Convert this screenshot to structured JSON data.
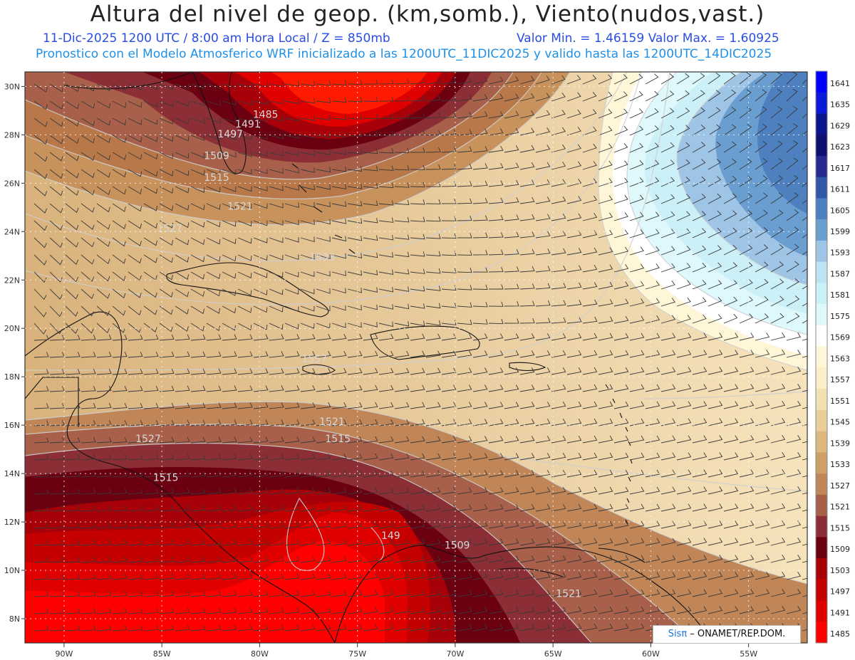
{
  "header": {
    "title": "Altura del nivel de geop. (km,somb.), Viento(nudos,vast.)",
    "subtitle_left": "11-Dic-2025   1200 UTC / 8:00 am Hora Local / Z = 850mb",
    "subtitle_right": "Valor Min. = 1.46159   Valor Max. = 1.60925",
    "model_line": "Pronostico con el Modelo Atmosferico WRF inicializado a las 1200UTC_11DIC2025 y valido hasta las  1200UTC_14DIC2025"
  },
  "map": {
    "lon_labels": [
      "90W",
      "85W",
      "80W",
      "75W",
      "70W",
      "65W",
      "60W",
      "55W"
    ],
    "lon_values": [
      -90,
      -85,
      -80,
      -75,
      -70,
      -65,
      -60,
      -55
    ],
    "lat_labels": [
      "30N",
      "28N",
      "26N",
      "24N",
      "22N",
      "20N",
      "18N",
      "16N",
      "14N",
      "12N",
      "10N",
      "8N"
    ],
    "lat_values": [
      30,
      28,
      26,
      24,
      22,
      20,
      18,
      16,
      14,
      12,
      10,
      8
    ],
    "lon_range": [
      -92,
      -52
    ],
    "lat_range": [
      7,
      30.6
    ],
    "contour_labels": [
      {
        "text": "1485",
        "lon": -79.7,
        "lat": 28.7
      },
      {
        "text": "1491",
        "lon": -80.6,
        "lat": 28.3
      },
      {
        "text": "1497",
        "lon": -81.5,
        "lat": 27.9
      },
      {
        "text": "1509",
        "lon": -82.2,
        "lat": 27.0
      },
      {
        "text": "1515",
        "lon": -82.2,
        "lat": 26.1
      },
      {
        "text": "1521",
        "lon": -81.0,
        "lat": 24.9
      },
      {
        "text": "1527",
        "lon": -84.6,
        "lat": 24.0
      },
      {
        "text": "1533",
        "lon": -76.8,
        "lat": 22.8
      },
      {
        "text": "1557",
        "lon": -77.2,
        "lat": 18.6
      },
      {
        "text": "1521",
        "lon": -76.3,
        "lat": 16.0
      },
      {
        "text": "1515",
        "lon": -76.0,
        "lat": 15.3
      },
      {
        "text": "1527",
        "lon": -85.7,
        "lat": 15.3
      },
      {
        "text": "1515",
        "lon": -84.8,
        "lat": 13.7
      },
      {
        "text": "149",
        "lon": -73.3,
        "lat": 11.3
      },
      {
        "text": "1509",
        "lon": -69.9,
        "lat": 10.9
      },
      {
        "text": "1521",
        "lon": -64.2,
        "lat": 8.9
      }
    ],
    "wind_description_regions": "barbs"
  },
  "colorbar": {
    "levels": [
      "1641",
      "1635",
      "1629",
      "1623",
      "1617",
      "1611",
      "1605",
      "1599",
      "1593",
      "1587",
      "1581",
      "1575",
      "1569",
      "1563",
      "1557",
      "1551",
      "1545",
      "1539",
      "1533",
      "1527",
      "1521",
      "1515",
      "1509",
      "1503",
      "1497",
      "1491",
      "1485"
    ],
    "colors": [
      "#0000ff",
      "#0a1ad8",
      "#0c168c",
      "#101070",
      "#282890",
      "#3358a8",
      "#4e80c0",
      "#6a9ed0",
      "#9ec4e6",
      "#bfe2f2",
      "#ccf0f8",
      "#def8fb",
      "#ffffff",
      "#fff6d8",
      "#fbedc8",
      "#f3e0b2",
      "#e9ce98",
      "#dcb780",
      "#cf9f68",
      "#c08658",
      "#a8604a",
      "#8c2e36",
      "#6a0010",
      "#a80008",
      "#c40000",
      "#e00000",
      "#ff0000"
    ]
  },
  "credit": {
    "brand": "Sisπ",
    "text": " – ONAMET/REP.DOM."
  }
}
